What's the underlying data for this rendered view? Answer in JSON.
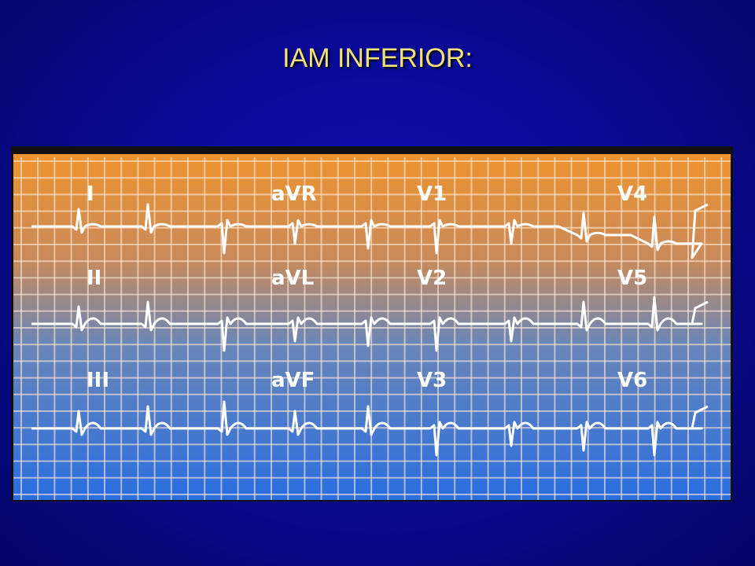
{
  "header": {
    "title": "IAM INFERIOR:"
  },
  "ecg": {
    "rows": [
      [
        "I",
        "aVR",
        "V1",
        "V4"
      ],
      [
        "II",
        "aVL",
        "V2",
        "V5"
      ],
      [
        "III",
        "aVF",
        "V3",
        "V6"
      ]
    ]
  }
}
